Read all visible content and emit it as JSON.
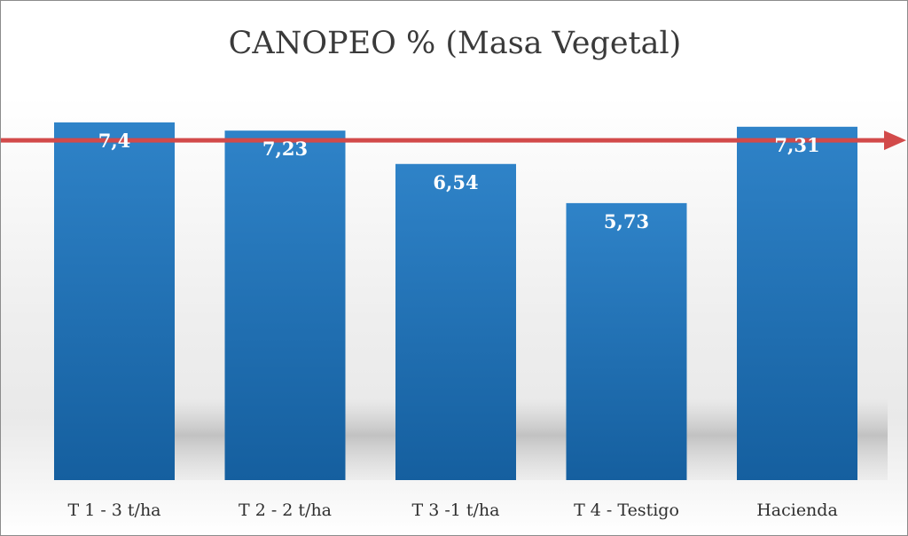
{
  "chart_data": {
    "type": "bar",
    "title": "CANOPEO % (Masa Vegetal)",
    "categories": [
      "T 1 - 3 t/ha",
      "T 2 - 2 t/ha",
      "T 3 -1 t/ha",
      "T 4 - Testigo",
      "Hacienda"
    ],
    "values": [
      7.4,
      7.23,
      6.54,
      5.73,
      7.31
    ],
    "value_labels": [
      "7,4",
      "7,23",
      "6,54",
      "5,73",
      "7,31"
    ],
    "xlabel": "",
    "ylabel": "",
    "ylim": [
      0,
      8.39
    ],
    "grid": false,
    "legend": "none",
    "reference_arrow_value": 7.03,
    "colors": {
      "bar_top": "#2f83c8",
      "bar_bottom": "#155f9f",
      "arrow": "#d24a4a"
    }
  }
}
